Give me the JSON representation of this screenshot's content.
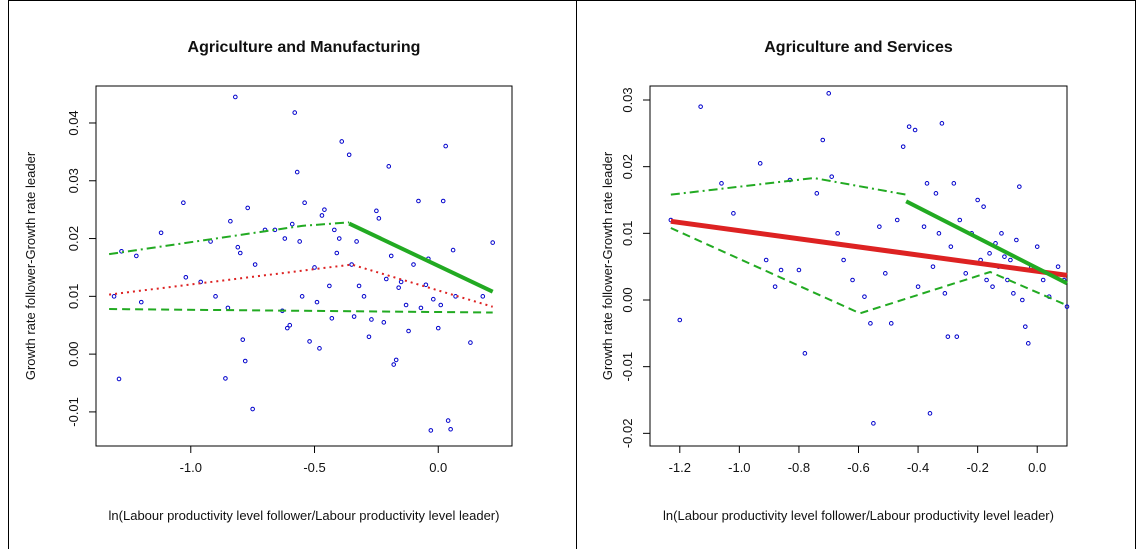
{
  "chart_data": [
    {
      "type": "scatter",
      "title": "Agriculture and Manufacturing",
      "x_label": "ln(Labour productivity level follower/Labour productivity level leader)",
      "y_label": "Growth rate follower-Growth rate leader",
      "xlim": [
        -1.383,
        0.298
      ],
      "ylim": [
        -0.0159,
        0.0464
      ],
      "xticks": [
        {
          "value": -1.0,
          "label": "-1.0"
        },
        -0.5,
        {
          "value": 0.0,
          "label": "0.0"
        }
      ],
      "yticks": [
        -0.01,
        {
          "value": 0.0,
          "label": "0.00"
        },
        0.01,
        0.02,
        0.03,
        0.04
      ],
      "points": {
        "color": "#0000cc",
        "x": [
          -1.29,
          -1.31,
          -1.28,
          -1.22,
          -1.2,
          -1.12,
          -1.03,
          -1.02,
          -0.96,
          -0.92,
          -0.9,
          -0.86,
          -0.85,
          -0.84,
          -0.82,
          -0.81,
          -0.8,
          -0.79,
          -0.78,
          -0.77,
          -0.75,
          -0.74,
          -0.7,
          -0.66,
          -0.63,
          -0.62,
          -0.61,
          -0.6,
          -0.59,
          -0.58,
          -0.57,
          -0.56,
          -0.55,
          -0.54,
          -0.52,
          -0.5,
          -0.49,
          -0.48,
          -0.47,
          -0.46,
          -0.44,
          -0.43,
          -0.42,
          -0.41,
          -0.4,
          -0.39,
          -0.36,
          -0.35,
          -0.34,
          -0.33,
          -0.32,
          -0.3,
          -0.28,
          -0.27,
          -0.25,
          -0.24,
          -0.22,
          -0.21,
          -0.2,
          -0.19,
          -0.18,
          -0.17,
          -0.16,
          -0.15,
          -0.13,
          -0.12,
          -0.1,
          -0.08,
          -0.07,
          -0.05,
          -0.04,
          -0.03,
          -0.02,
          0.0,
          0.01,
          0.02,
          0.03,
          0.04,
          0.05,
          0.06,
          0.07,
          0.13,
          0.22,
          0.18
        ],
        "y": [
          -0.0043,
          0.01,
          0.0178,
          0.017,
          0.009,
          0.021,
          0.0262,
          0.0133,
          0.0125,
          0.0195,
          0.01,
          -0.0042,
          0.008,
          0.023,
          0.0445,
          0.0185,
          0.0175,
          0.0025,
          -0.0012,
          0.0253,
          -0.0095,
          0.0155,
          0.0215,
          0.0215,
          0.0075,
          0.02,
          0.0045,
          0.005,
          0.0225,
          0.0418,
          0.0315,
          0.0195,
          0.01,
          0.0262,
          0.0022,
          0.015,
          0.009,
          0.001,
          0.024,
          0.025,
          0.0118,
          0.0062,
          0.0215,
          0.0175,
          0.02,
          0.0368,
          0.0345,
          0.0155,
          0.0065,
          0.0195,
          0.0118,
          0.01,
          0.003,
          0.006,
          0.0248,
          0.0235,
          0.0055,
          0.013,
          0.0325,
          0.017,
          -0.0018,
          -0.001,
          0.0115,
          0.0125,
          0.0085,
          0.004,
          0.0155,
          0.0265,
          0.008,
          0.012,
          0.0165,
          -0.0132,
          0.0095,
          0.0045,
          0.0085,
          0.0265,
          0.036,
          -0.0115,
          -0.013,
          0.018,
          0.01,
          0.002,
          0.0193,
          0.01
        ]
      },
      "lines": [
        {
          "color": "#22aa22",
          "style": "solid",
          "width": 4,
          "x": [
            -0.36,
            0.22
          ],
          "y": [
            0.0226,
            0.0108
          ]
        },
        {
          "color": "#22aa22",
          "style": "dashdot",
          "width": 2,
          "x": [
            -1.33,
            -0.55,
            -0.36
          ],
          "y": [
            0.0173,
            0.0222,
            0.0228
          ]
        },
        {
          "color": "#dd2222",
          "style": "dotted",
          "width": 2,
          "x": [
            -1.33,
            -0.35,
            0.22
          ],
          "y": [
            0.0103,
            0.0155,
            0.0082
          ]
        },
        {
          "color": "#22aa22",
          "style": "dashed",
          "width": 2,
          "x": [
            -1.33,
            0.22
          ],
          "y": [
            0.0078,
            0.0072
          ]
        }
      ]
    },
    {
      "type": "scatter",
      "title": "Agriculture and Services",
      "x_label": "ln(Labour productivity level follower/Labour productivity level leader)",
      "y_label": "Growth rate follower-Growth rate leader",
      "xlim": [
        -1.3,
        0.1
      ],
      "ylim": [
        -0.0219,
        0.0321
      ],
      "xticks": [
        -1.2,
        {
          "value": -1.0,
          "label": "-1.0"
        },
        -0.8,
        -0.6,
        -0.4,
        -0.2,
        {
          "value": 0.0,
          "label": "0.0"
        }
      ],
      "yticks": [
        -0.02,
        -0.01,
        {
          "value": 0.0,
          "label": "0.00"
        },
        0.01,
        0.02,
        0.03
      ],
      "points": {
        "color": "#0000cc",
        "x": [
          -1.23,
          -1.2,
          -1.13,
          -1.06,
          -1.02,
          -0.93,
          -0.91,
          -0.88,
          -0.86,
          -0.83,
          -0.8,
          -0.78,
          -0.74,
          -0.72,
          -0.7,
          -0.69,
          -0.67,
          -0.65,
          -0.62,
          -0.58,
          -0.56,
          -0.55,
          -0.53,
          -0.51,
          -0.49,
          -0.47,
          -0.45,
          -0.43,
          -0.41,
          -0.4,
          -0.38,
          -0.37,
          -0.36,
          -0.35,
          -0.34,
          -0.33,
          -0.32,
          -0.31,
          -0.3,
          -0.29,
          -0.28,
          -0.27,
          -0.26,
          -0.24,
          -0.22,
          -0.2,
          -0.19,
          -0.18,
          -0.17,
          -0.16,
          -0.15,
          -0.14,
          -0.13,
          -0.12,
          -0.11,
          -0.1,
          -0.09,
          -0.08,
          -0.07,
          -0.06,
          -0.05,
          -0.04,
          -0.03,
          -0.02,
          0.0,
          0.02,
          0.04,
          0.07,
          0.09,
          0.1
        ],
        "y": [
          0.012,
          -0.003,
          0.029,
          0.0175,
          0.013,
          0.0205,
          0.006,
          0.002,
          0.0045,
          0.018,
          0.0045,
          -0.008,
          0.016,
          0.024,
          0.031,
          0.0185,
          0.01,
          0.006,
          0.003,
          0.0005,
          -0.0035,
          -0.0185,
          0.011,
          0.004,
          -0.0035,
          0.012,
          0.023,
          0.026,
          0.0255,
          0.002,
          0.011,
          0.0175,
          -0.017,
          0.005,
          0.016,
          0.01,
          0.0265,
          0.001,
          -0.0055,
          0.008,
          0.0175,
          -0.0055,
          0.012,
          0.004,
          0.01,
          0.015,
          0.006,
          0.014,
          0.003,
          0.007,
          0.002,
          0.0085,
          0.005,
          0.01,
          0.0065,
          0.003,
          0.006,
          0.001,
          0.009,
          0.017,
          0.0,
          -0.004,
          -0.0065,
          0.005,
          0.008,
          0.003,
          0.0005,
          0.005,
          0.003,
          -0.001
        ]
      },
      "lines": [
        {
          "color": "#dd2222",
          "style": "solid",
          "width": 5,
          "x": [
            -1.23,
            0.1
          ],
          "y": [
            0.0118,
            0.0037
          ]
        },
        {
          "color": "#22aa22",
          "style": "solid",
          "width": 4,
          "x": [
            -0.44,
            0.1
          ],
          "y": [
            0.0148,
            0.0025
          ]
        },
        {
          "color": "#22aa22",
          "style": "dashdot",
          "width": 2,
          "x": [
            -1.23,
            -0.75,
            -0.44
          ],
          "y": [
            0.0158,
            0.0183,
            0.0158
          ]
        },
        {
          "color": "#22aa22",
          "style": "dashed",
          "width": 2,
          "x": [
            -1.23,
            -0.595,
            -0.158,
            0.1
          ],
          "y": [
            0.0108,
            -0.002,
            0.0042,
            -0.0008
          ]
        }
      ]
    }
  ]
}
